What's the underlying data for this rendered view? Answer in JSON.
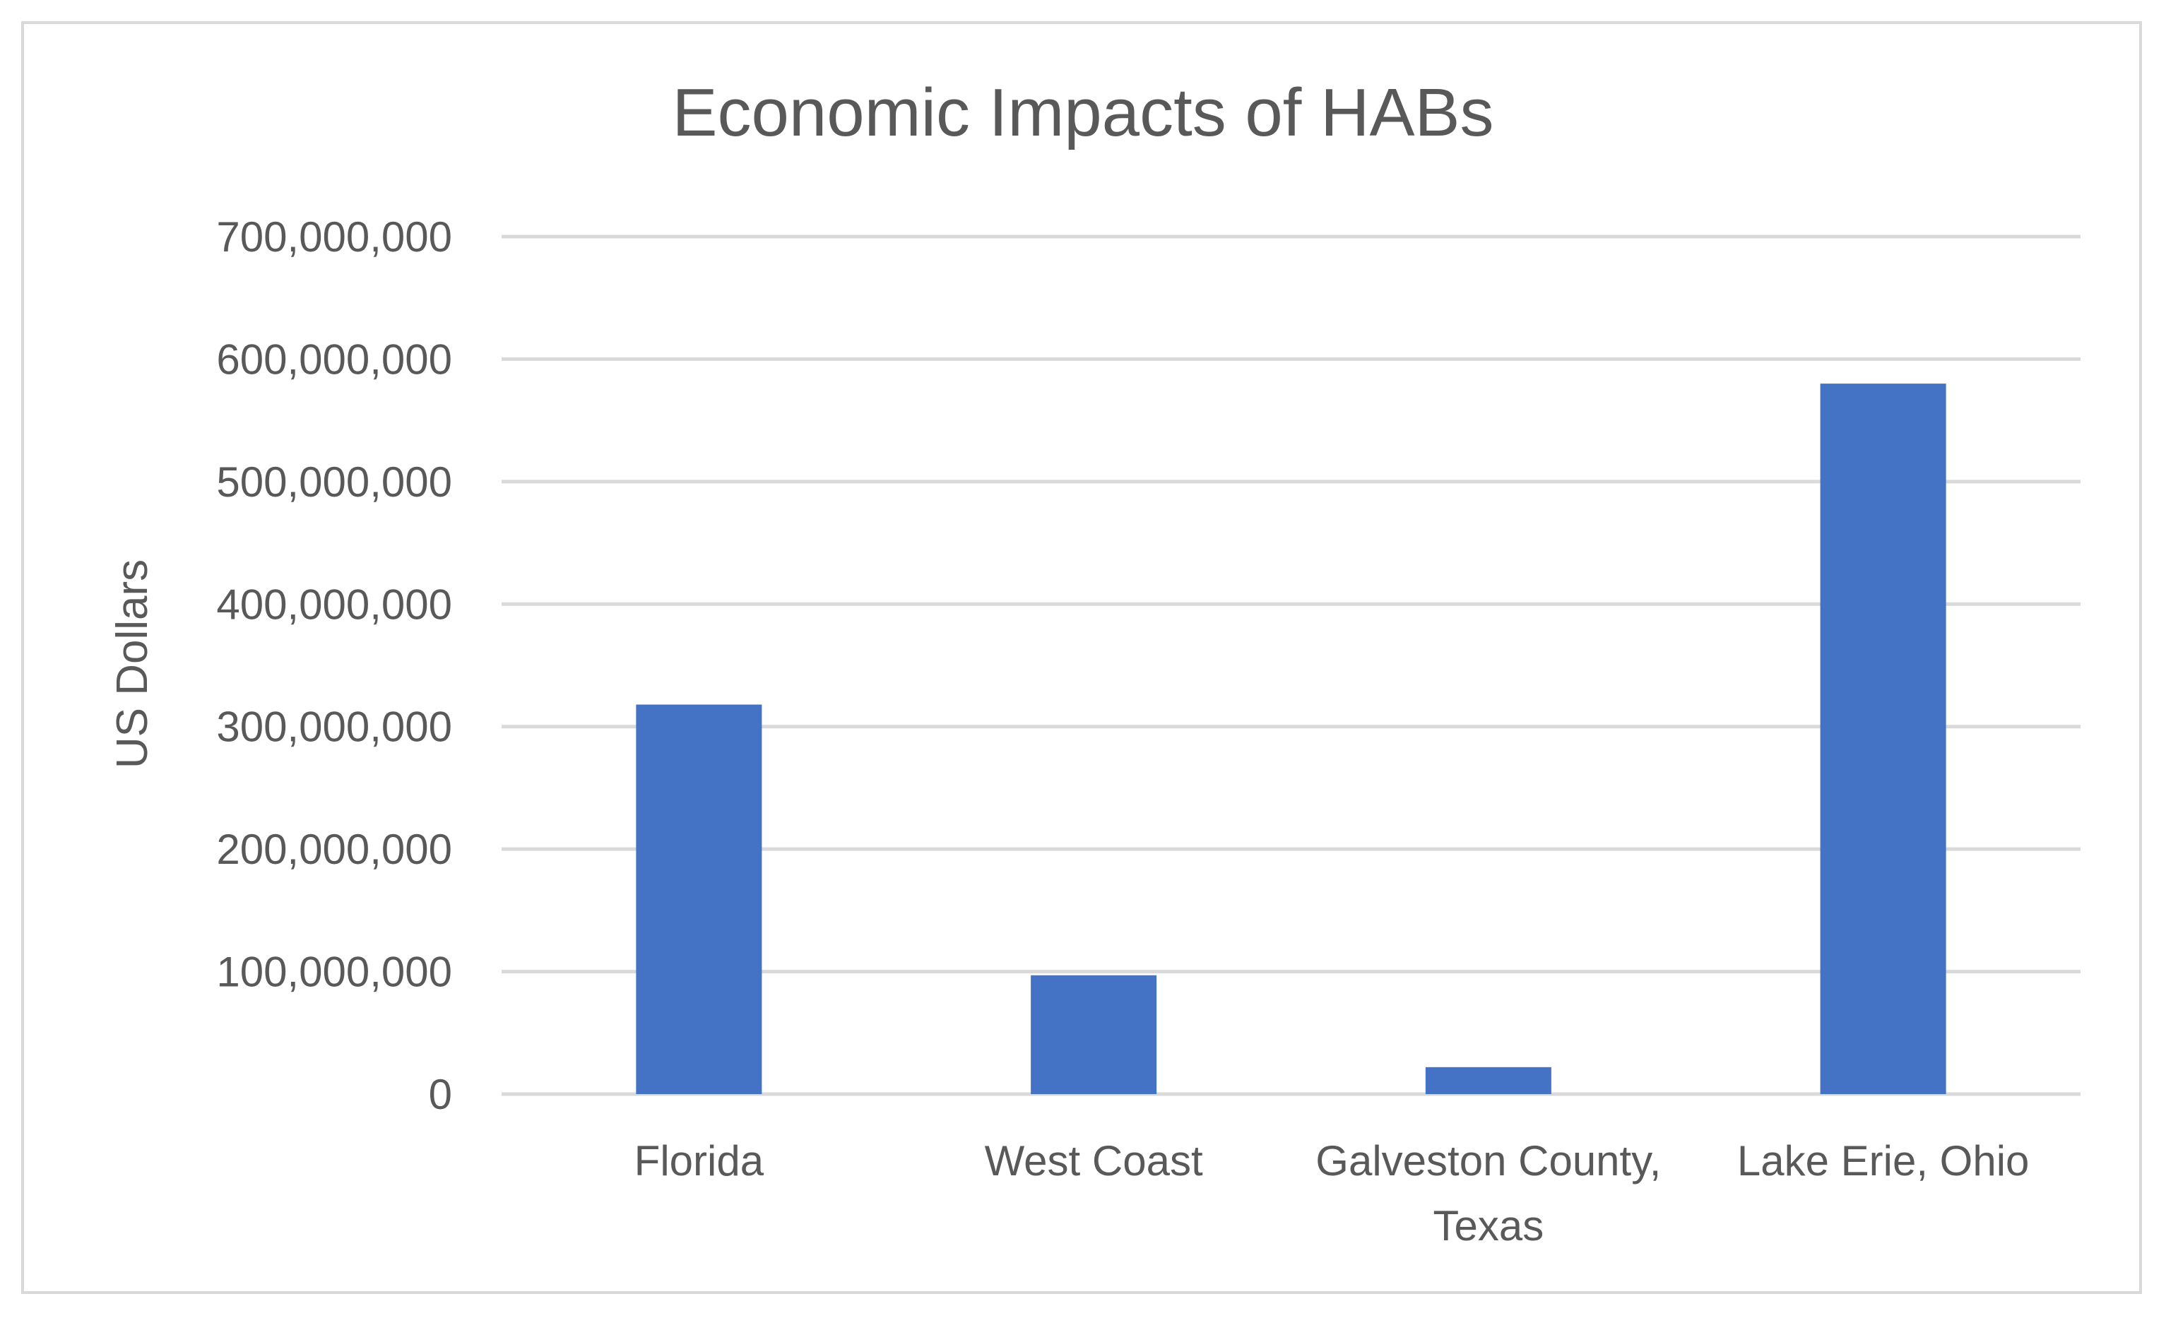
{
  "chart_data": {
    "type": "bar",
    "title": "Economic Impacts of HABs",
    "xlabel": "",
    "ylabel": "US Dollars",
    "categories": [
      [
        "Florida"
      ],
      [
        "West Coast"
      ],
      [
        "Galveston County,",
        "Texas"
      ],
      [
        "Lake Erie, Ohio"
      ]
    ],
    "values": [
      318000000,
      97000000,
      22000000,
      580000000
    ],
    "ylim": [
      0,
      700000000
    ],
    "yticks": [
      0,
      100000000,
      200000000,
      300000000,
      400000000,
      500000000,
      600000000,
      700000000
    ],
    "ytick_labels": [
      "0",
      "100,000,000",
      "200,000,000",
      "300,000,000",
      "400,000,000",
      "500,000,000",
      "600,000,000",
      "700,000,000"
    ],
    "grid": true,
    "legend": "none",
    "colors": {
      "bar": "#4472C4",
      "grid": "#d9d9d9",
      "text": "#595959",
      "frame": "#d9d9d9"
    }
  }
}
